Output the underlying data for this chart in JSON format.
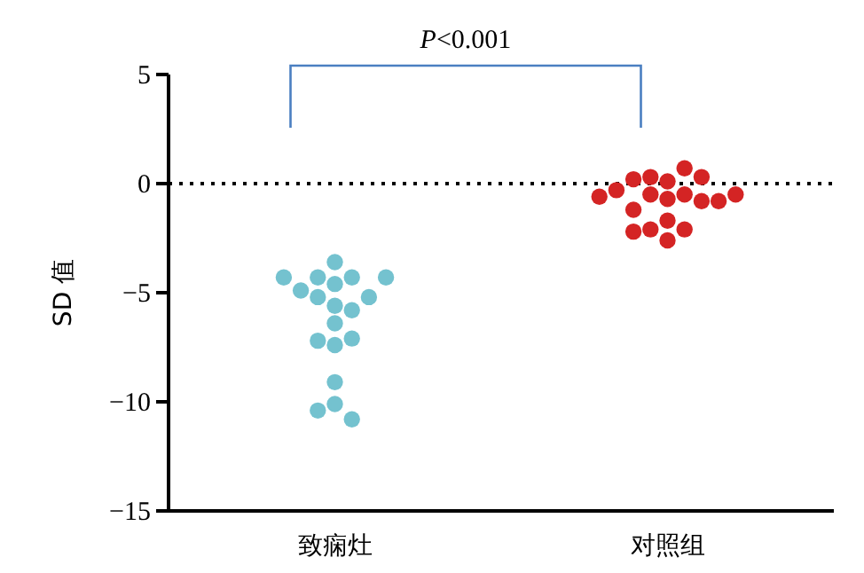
{
  "chart_data": {
    "type": "scatter",
    "ylabel": "SD 值",
    "categories": [
      "致痫灶",
      "对照组"
    ],
    "ylim": [
      -15,
      5
    ],
    "yticks": [
      {
        "value": -15,
        "label": "−15"
      },
      {
        "value": -10,
        "label": "−10"
      },
      {
        "value": -5,
        "label": "−5"
      },
      0,
      5
    ],
    "grid": false,
    "marker": "circle",
    "series": [
      {
        "color": "#74c2cf",
        "x": [
          "致痫灶",
          "致痫灶",
          "致痫灶",
          "致痫灶",
          "致痫灶",
          "致痫灶",
          "致痫灶",
          "致痫灶",
          "致痫灶",
          "致痫灶",
          "致痫灶",
          "致痫灶",
          "致痫灶",
          "致痫灶",
          "致痫灶",
          "致痫灶",
          "致痫灶",
          "致痫灶",
          "致痫灶"
        ],
        "values": [
          -3.6,
          -4.3,
          -4.6,
          -4.3,
          -4.3,
          -4.3,
          -4.9,
          -5.2,
          -5.6,
          -5.8,
          -5.2,
          -6.4,
          -7.4,
          -7.2,
          -7.1,
          -9.1,
          -10.1,
          -10.4,
          -10.8
        ]
      },
      {
        "color": "#d42424",
        "x": [
          "对照组",
          "对照组",
          "对照组",
          "对照组",
          "对照组",
          "对照组",
          "对照组",
          "对照组",
          "对照组",
          "对照组",
          "对照组",
          "对照组",
          "对照组",
          "对照组",
          "对照组",
          "对照组",
          "对照组",
          "对照组",
          "对照组"
        ],
        "values": [
          0.1,
          -0.5,
          0.3,
          -0.5,
          -1.7,
          -2.1,
          0.2,
          -0.7,
          -1.2,
          -2.1,
          0.7,
          -0.8,
          -2.2,
          0.3,
          -0.3,
          -0.8,
          -2.6,
          -0.6,
          -0.5
        ]
      }
    ],
    "ref_lines": [
      {
        "axis": "y",
        "value": 0,
        "color": "#000000",
        "line_style": "dotted"
      }
    ],
    "annotations": [
      "P<0.001"
    ]
  }
}
